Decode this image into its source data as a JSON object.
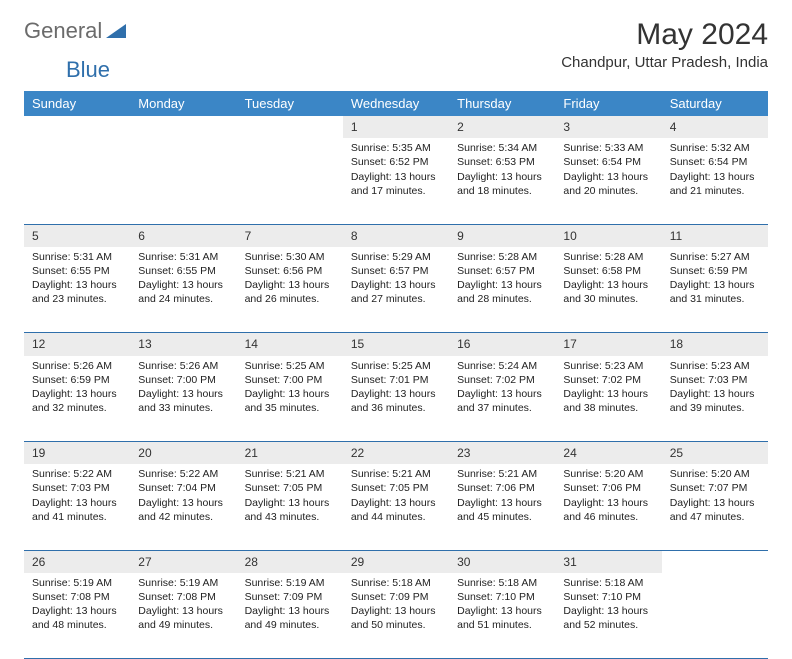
{
  "brand": {
    "part1": "General",
    "part2": "Blue",
    "color1": "#6b6b6b",
    "color2": "#2f6fab"
  },
  "title": "May 2024",
  "location": "Chandpur, Uttar Pradesh, India",
  "header_bg": "#3b86c6",
  "daynum_bg": "#ececec",
  "rule_color": "#2f6fab",
  "days": [
    "Sunday",
    "Monday",
    "Tuesday",
    "Wednesday",
    "Thursday",
    "Friday",
    "Saturday"
  ],
  "weeks": [
    {
      "nums": [
        "",
        "",
        "",
        "1",
        "2",
        "3",
        "4"
      ],
      "info": [
        "",
        "",
        "",
        "Sunrise: 5:35 AM\nSunset: 6:52 PM\nDaylight: 13 hours and 17 minutes.",
        "Sunrise: 5:34 AM\nSunset: 6:53 PM\nDaylight: 13 hours and 18 minutes.",
        "Sunrise: 5:33 AM\nSunset: 6:54 PM\nDaylight: 13 hours and 20 minutes.",
        "Sunrise: 5:32 AM\nSunset: 6:54 PM\nDaylight: 13 hours and 21 minutes."
      ]
    },
    {
      "nums": [
        "5",
        "6",
        "7",
        "8",
        "9",
        "10",
        "11"
      ],
      "info": [
        "Sunrise: 5:31 AM\nSunset: 6:55 PM\nDaylight: 13 hours and 23 minutes.",
        "Sunrise: 5:31 AM\nSunset: 6:55 PM\nDaylight: 13 hours and 24 minutes.",
        "Sunrise: 5:30 AM\nSunset: 6:56 PM\nDaylight: 13 hours and 26 minutes.",
        "Sunrise: 5:29 AM\nSunset: 6:57 PM\nDaylight: 13 hours and 27 minutes.",
        "Sunrise: 5:28 AM\nSunset: 6:57 PM\nDaylight: 13 hours and 28 minutes.",
        "Sunrise: 5:28 AM\nSunset: 6:58 PM\nDaylight: 13 hours and 30 minutes.",
        "Sunrise: 5:27 AM\nSunset: 6:59 PM\nDaylight: 13 hours and 31 minutes."
      ]
    },
    {
      "nums": [
        "12",
        "13",
        "14",
        "15",
        "16",
        "17",
        "18"
      ],
      "info": [
        "Sunrise: 5:26 AM\nSunset: 6:59 PM\nDaylight: 13 hours and 32 minutes.",
        "Sunrise: 5:26 AM\nSunset: 7:00 PM\nDaylight: 13 hours and 33 minutes.",
        "Sunrise: 5:25 AM\nSunset: 7:00 PM\nDaylight: 13 hours and 35 minutes.",
        "Sunrise: 5:25 AM\nSunset: 7:01 PM\nDaylight: 13 hours and 36 minutes.",
        "Sunrise: 5:24 AM\nSunset: 7:02 PM\nDaylight: 13 hours and 37 minutes.",
        "Sunrise: 5:23 AM\nSunset: 7:02 PM\nDaylight: 13 hours and 38 minutes.",
        "Sunrise: 5:23 AM\nSunset: 7:03 PM\nDaylight: 13 hours and 39 minutes."
      ]
    },
    {
      "nums": [
        "19",
        "20",
        "21",
        "22",
        "23",
        "24",
        "25"
      ],
      "info": [
        "Sunrise: 5:22 AM\nSunset: 7:03 PM\nDaylight: 13 hours and 41 minutes.",
        "Sunrise: 5:22 AM\nSunset: 7:04 PM\nDaylight: 13 hours and 42 minutes.",
        "Sunrise: 5:21 AM\nSunset: 7:05 PM\nDaylight: 13 hours and 43 minutes.",
        "Sunrise: 5:21 AM\nSunset: 7:05 PM\nDaylight: 13 hours and 44 minutes.",
        "Sunrise: 5:21 AM\nSunset: 7:06 PM\nDaylight: 13 hours and 45 minutes.",
        "Sunrise: 5:20 AM\nSunset: 7:06 PM\nDaylight: 13 hours and 46 minutes.",
        "Sunrise: 5:20 AM\nSunset: 7:07 PM\nDaylight: 13 hours and 47 minutes."
      ]
    },
    {
      "nums": [
        "26",
        "27",
        "28",
        "29",
        "30",
        "31",
        ""
      ],
      "info": [
        "Sunrise: 5:19 AM\nSunset: 7:08 PM\nDaylight: 13 hours and 48 minutes.",
        "Sunrise: 5:19 AM\nSunset: 7:08 PM\nDaylight: 13 hours and 49 minutes.",
        "Sunrise: 5:19 AM\nSunset: 7:09 PM\nDaylight: 13 hours and 49 minutes.",
        "Sunrise: 5:18 AM\nSunset: 7:09 PM\nDaylight: 13 hours and 50 minutes.",
        "Sunrise: 5:18 AM\nSunset: 7:10 PM\nDaylight: 13 hours and 51 minutes.",
        "Sunrise: 5:18 AM\nSunset: 7:10 PM\nDaylight: 13 hours and 52 minutes.",
        ""
      ]
    }
  ]
}
